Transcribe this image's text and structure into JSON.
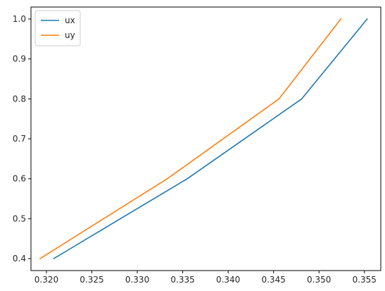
{
  "chart_data": {
    "type": "line",
    "title": "",
    "xlabel": "",
    "ylabel": "",
    "xlim": [
      0.3183,
      0.3568
    ],
    "ylim": [
      0.37,
      1.03
    ],
    "xticks": [
      "0.320",
      "0.325",
      "0.330",
      "0.335",
      "0.340",
      "0.345",
      "0.350",
      "0.355"
    ],
    "yticks": [
      "0.4",
      "0.5",
      "0.6",
      "0.7",
      "0.8",
      "0.9",
      "1.0"
    ],
    "grid": false,
    "legend_position": "top-left",
    "series": [
      {
        "name": "ux",
        "color": "#1f77b4",
        "points": [
          [
            0.3208,
            0.4
          ],
          [
            0.3355,
            0.6
          ],
          [
            0.3481,
            0.8
          ],
          [
            0.3553,
            1.0
          ]
        ]
      },
      {
        "name": "uy",
        "color": "#ff7f0e",
        "points": [
          [
            0.3193,
            0.4
          ],
          [
            0.3333,
            0.6
          ],
          [
            0.3456,
            0.8
          ],
          [
            0.3524,
            1.0
          ]
        ]
      }
    ]
  }
}
